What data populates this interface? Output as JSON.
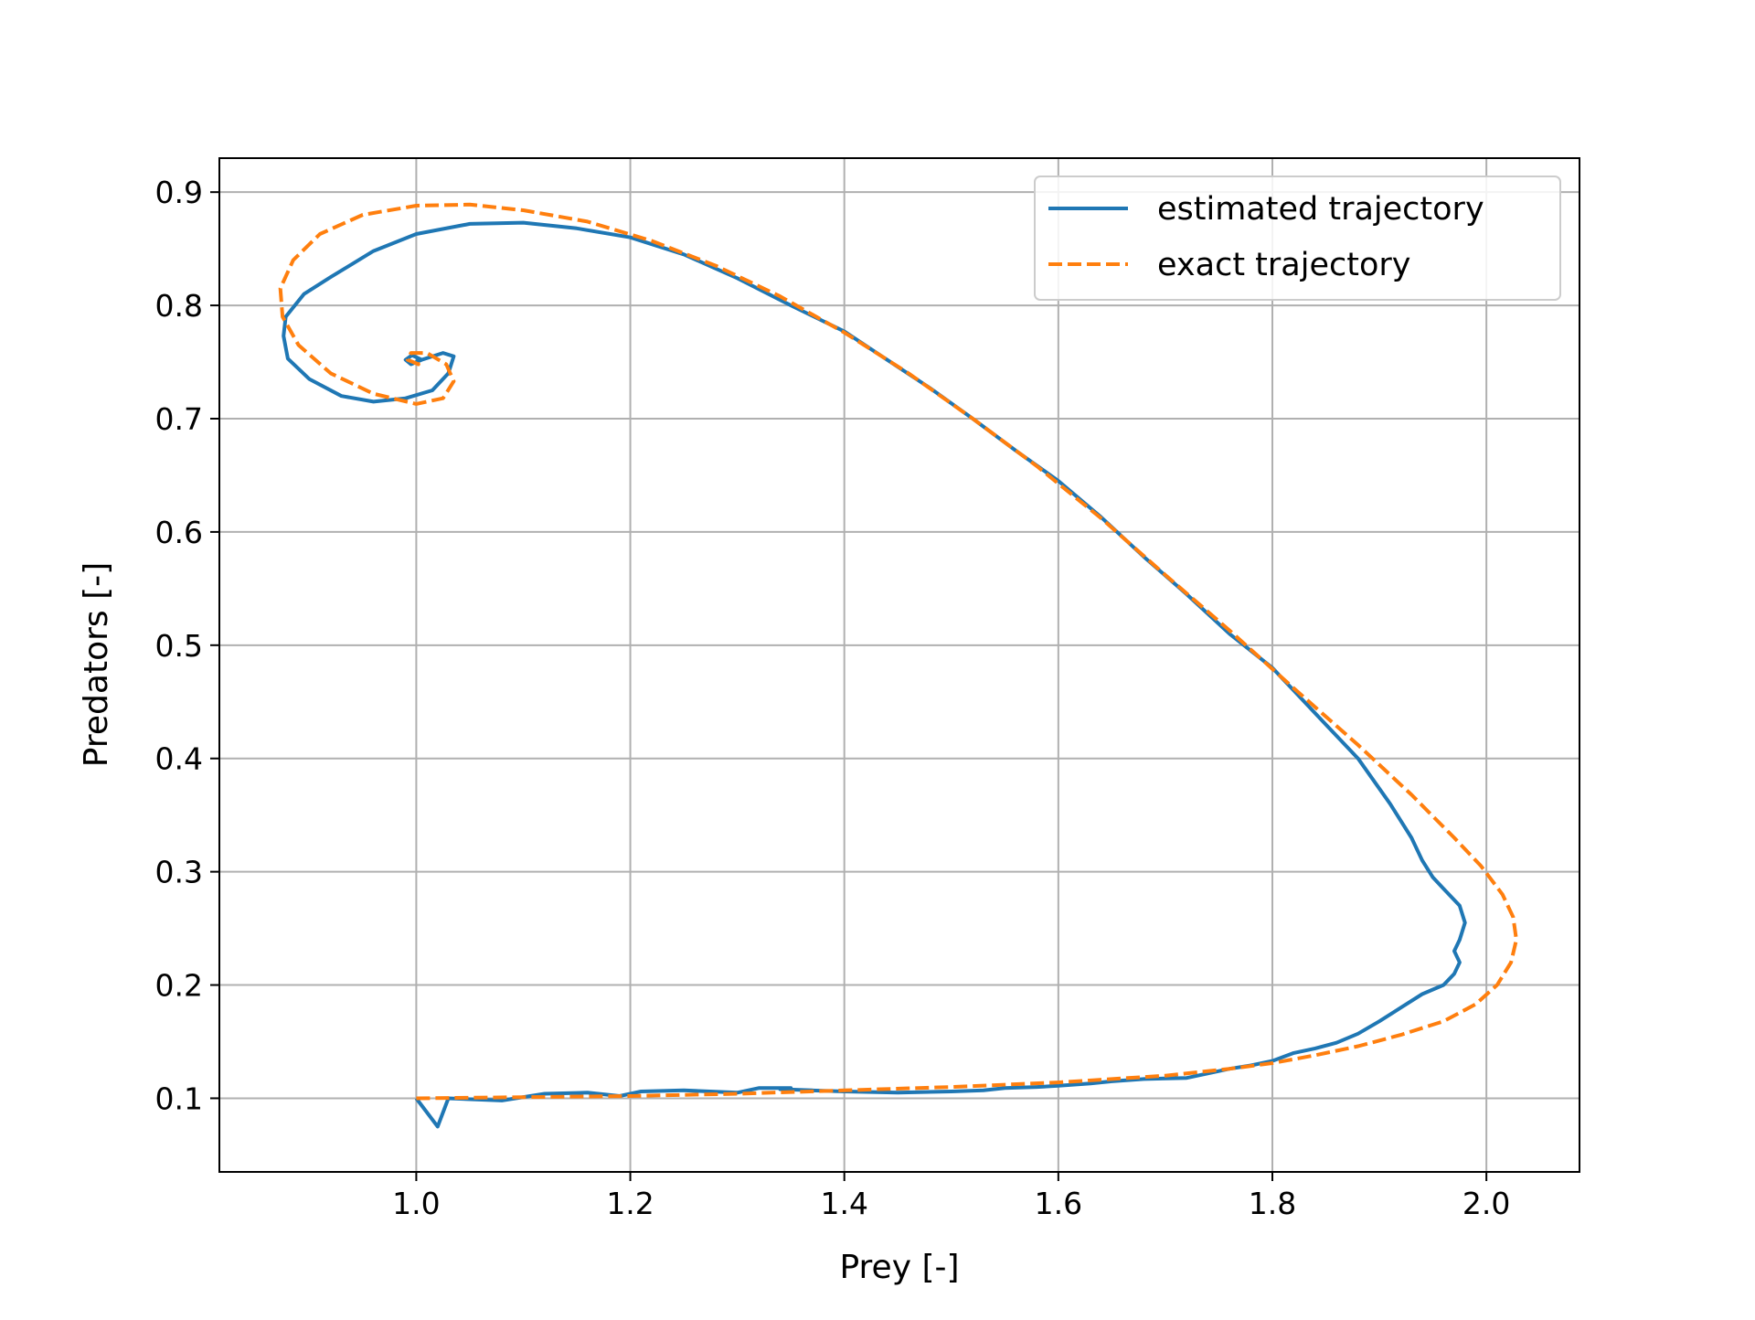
{
  "chart_data": {
    "type": "line",
    "title": "",
    "xlabel": "Prey [-]",
    "ylabel": "Predators [-]",
    "xlim": [
      0.816,
      2.087
    ],
    "ylim": [
      0.035,
      0.93
    ],
    "xticks": [
      1.0,
      1.2,
      1.4,
      1.6,
      1.8,
      2.0
    ],
    "xtick_labels": [
      "1.0",
      "1.2",
      "1.4",
      "1.6",
      "1.8",
      "2.0"
    ],
    "yticks": [
      0.1,
      0.2,
      0.3,
      0.4,
      0.5,
      0.6,
      0.7,
      0.8,
      0.9
    ],
    "ytick_labels": [
      "0.1",
      "0.2",
      "0.3",
      "0.4",
      "0.5",
      "0.6",
      "0.7",
      "0.8",
      "0.9"
    ],
    "grid": true,
    "legend_position": "top-right",
    "series": [
      {
        "name": "estimated trajectory",
        "color": "#1f77b4",
        "style": "solid",
        "x": [
          1.0,
          1.02,
          1.03,
          1.08,
          1.12,
          1.16,
          1.19,
          1.21,
          1.25,
          1.3,
          1.32,
          1.35,
          1.34,
          1.37,
          1.4,
          1.45,
          1.5,
          1.53,
          1.55,
          1.58,
          1.6,
          1.63,
          1.65,
          1.68,
          1.72,
          1.74,
          1.76,
          1.78,
          1.8,
          1.82,
          1.84,
          1.86,
          1.88,
          1.9,
          1.92,
          1.94,
          1.96,
          1.97,
          1.975,
          1.97,
          1.975,
          1.98,
          1.975,
          1.96,
          1.95,
          1.94,
          1.93,
          1.91,
          1.88,
          1.85,
          1.82,
          1.8,
          1.76,
          1.72,
          1.68,
          1.64,
          1.6,
          1.56,
          1.52,
          1.48,
          1.44,
          1.4,
          1.35,
          1.3,
          1.25,
          1.2,
          1.15,
          1.1,
          1.05,
          1.0,
          0.96,
          0.92,
          0.895,
          0.878,
          0.876,
          0.88,
          0.9,
          0.93,
          0.96,
          0.99,
          1.015,
          1.03,
          1.035,
          1.025,
          1.005,
          0.995,
          0.99,
          0.996,
          1.005,
          1.0
        ],
        "y": [
          0.1,
          0.075,
          0.1,
          0.098,
          0.104,
          0.105,
          0.102,
          0.106,
          0.107,
          0.105,
          0.109,
          0.109,
          0.108,
          0.107,
          0.106,
          0.105,
          0.106,
          0.107,
          0.109,
          0.11,
          0.111,
          0.113,
          0.115,
          0.117,
          0.118,
          0.122,
          0.126,
          0.129,
          0.133,
          0.14,
          0.144,
          0.149,
          0.157,
          0.168,
          0.18,
          0.192,
          0.2,
          0.21,
          0.22,
          0.23,
          0.24,
          0.255,
          0.27,
          0.285,
          0.295,
          0.31,
          0.33,
          0.36,
          0.4,
          0.43,
          0.46,
          0.48,
          0.51,
          0.545,
          0.578,
          0.613,
          0.645,
          0.672,
          0.7,
          0.727,
          0.752,
          0.777,
          0.8,
          0.824,
          0.845,
          0.86,
          0.868,
          0.873,
          0.872,
          0.863,
          0.848,
          0.825,
          0.81,
          0.79,
          0.773,
          0.753,
          0.735,
          0.72,
          0.715,
          0.718,
          0.725,
          0.74,
          0.755,
          0.758,
          0.752,
          0.748,
          0.752,
          0.756,
          0.752,
          0.753
        ]
      },
      {
        "name": "exact trajectory",
        "color": "#ff7f0e",
        "style": "dashed",
        "x": [
          1.0,
          1.1,
          1.2,
          1.3,
          1.4,
          1.5,
          1.6,
          1.7,
          1.76,
          1.8,
          1.84,
          1.88,
          1.92,
          1.96,
          1.99,
          2.01,
          2.023,
          2.028,
          2.025,
          2.015,
          1.995,
          1.97,
          1.93,
          1.88,
          1.82,
          1.76,
          1.7,
          1.64,
          1.58,
          1.52,
          1.46,
          1.4,
          1.34,
          1.28,
          1.22,
          1.16,
          1.1,
          1.05,
          1.0,
          0.95,
          0.91,
          0.885,
          0.873,
          0.875,
          0.89,
          0.92,
          0.96,
          1.0,
          1.025,
          1.035,
          1.028,
          1.01,
          0.995,
          0.992,
          1.002,
          1.0
        ],
        "y": [
          0.1,
          0.101,
          0.102,
          0.104,
          0.107,
          0.11,
          0.114,
          0.12,
          0.126,
          0.131,
          0.138,
          0.146,
          0.156,
          0.168,
          0.183,
          0.2,
          0.22,
          0.24,
          0.26,
          0.28,
          0.305,
          0.33,
          0.368,
          0.412,
          0.462,
          0.513,
          0.562,
          0.612,
          0.658,
          0.7,
          0.74,
          0.776,
          0.808,
          0.835,
          0.857,
          0.874,
          0.884,
          0.889,
          0.888,
          0.88,
          0.863,
          0.84,
          0.815,
          0.79,
          0.765,
          0.74,
          0.722,
          0.713,
          0.718,
          0.733,
          0.748,
          0.758,
          0.758,
          0.752,
          0.748,
          0.753
        ]
      }
    ]
  }
}
